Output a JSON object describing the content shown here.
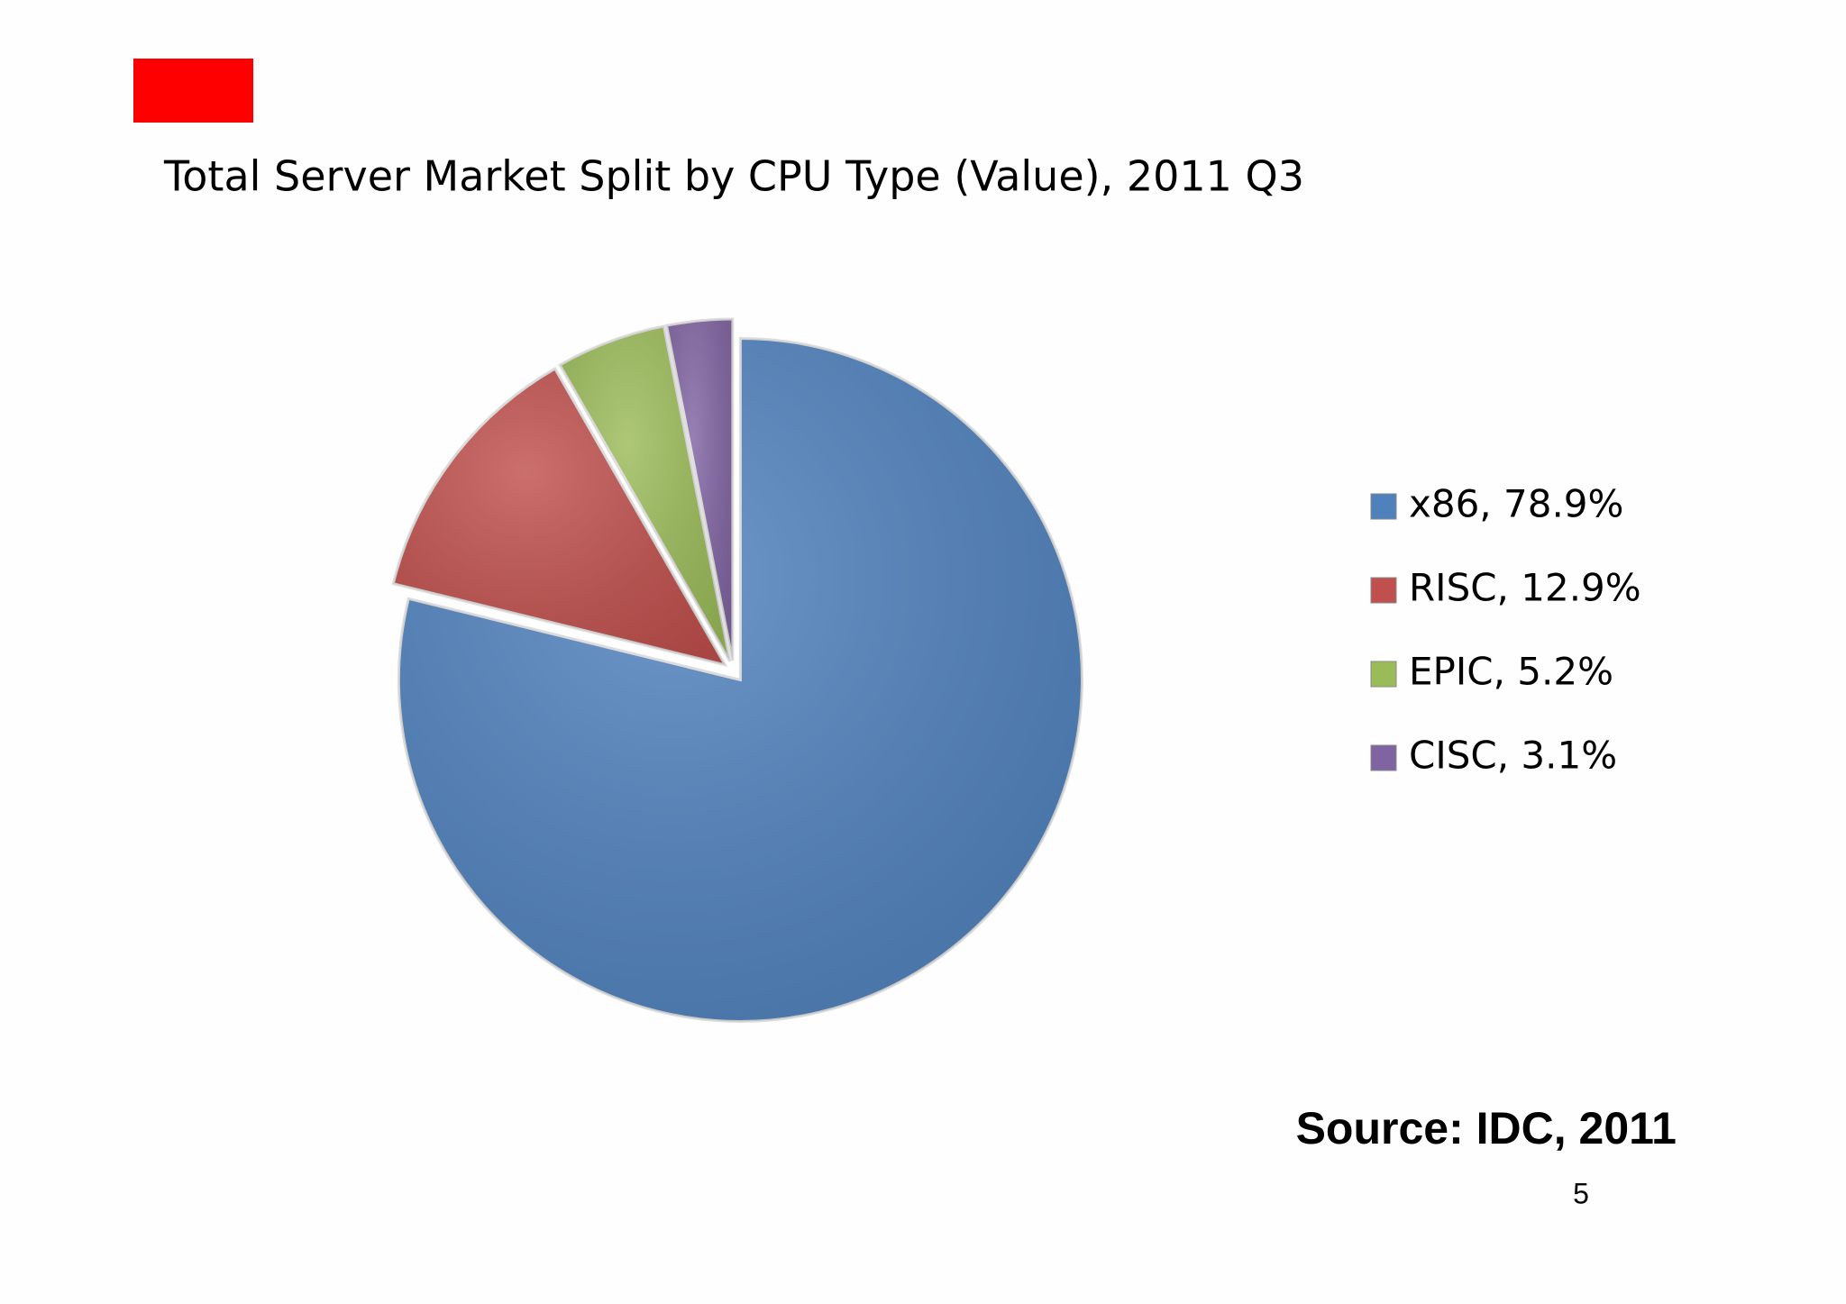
{
  "chart_data": {
    "type": "pie",
    "title": "Total Server Market Split by CPU Type (Value), 2011 Q3",
    "categories": [
      "x86, 78.9%",
      "RISC, 12.9%",
      "EPIC, 5.2%",
      "CISC, 3.1%"
    ],
    "values": [
      78.9,
      12.9,
      5.2,
      3.1
    ],
    "colors": [
      "#4f81bd",
      "#c0504d",
      "#9bbb59",
      "#8064a2"
    ],
    "source": "Source: IDC, 2011"
  },
  "page_number": "5"
}
